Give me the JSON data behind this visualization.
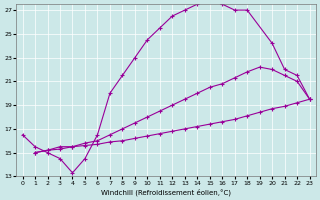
{
  "bg_color": "#cce8e8",
  "line_color": "#990099",
  "grid_color": "#b8d8d8",
  "xlabel": "Windchill (Refroidissement éolien,°C)",
  "xlim": [
    -0.5,
    23.5
  ],
  "ylim": [
    13,
    27.5
  ],
  "xticks": [
    0,
    1,
    2,
    3,
    4,
    5,
    6,
    7,
    8,
    9,
    10,
    11,
    12,
    13,
    14,
    15,
    16,
    17,
    18,
    19,
    20,
    21,
    22,
    23
  ],
  "yticks": [
    13,
    15,
    17,
    19,
    21,
    23,
    25,
    27
  ],
  "curve1_x": [
    0,
    1,
    2,
    3,
    4,
    5,
    6,
    7,
    8,
    9,
    10,
    11,
    12,
    13,
    14,
    15,
    16,
    17,
    18,
    20,
    21,
    22,
    23
  ],
  "curve1_y": [
    16.5,
    15.5,
    15.0,
    14.5,
    13.3,
    14.5,
    16.5,
    20.0,
    21.5,
    23.0,
    24.5,
    25.5,
    26.5,
    27.0,
    27.5,
    27.8,
    27.5,
    27.0,
    27.0,
    24.2,
    22.0,
    21.5,
    19.5
  ],
  "curve2_x": [
    1,
    2,
    3,
    4,
    5,
    6,
    7,
    8,
    9,
    10,
    11,
    12,
    13,
    14,
    15,
    16,
    17,
    18,
    19,
    20,
    21,
    22,
    23
  ],
  "curve2_y": [
    15.0,
    15.2,
    15.5,
    15.5,
    15.8,
    16.0,
    16.5,
    17.0,
    17.5,
    18.0,
    18.5,
    19.0,
    19.5,
    20.0,
    20.5,
    20.8,
    21.3,
    21.8,
    22.2,
    22.0,
    21.5,
    21.0,
    19.5
  ],
  "curve3_x": [
    1,
    2,
    3,
    4,
    5,
    6,
    7,
    8,
    9,
    10,
    11,
    12,
    13,
    14,
    15,
    16,
    17,
    18,
    19,
    20,
    21,
    22,
    23
  ],
  "curve3_y": [
    15.0,
    15.2,
    15.3,
    15.5,
    15.6,
    15.7,
    15.9,
    16.0,
    16.2,
    16.4,
    16.6,
    16.8,
    17.0,
    17.2,
    17.4,
    17.6,
    17.8,
    18.1,
    18.4,
    18.7,
    18.9,
    19.2,
    19.5
  ]
}
